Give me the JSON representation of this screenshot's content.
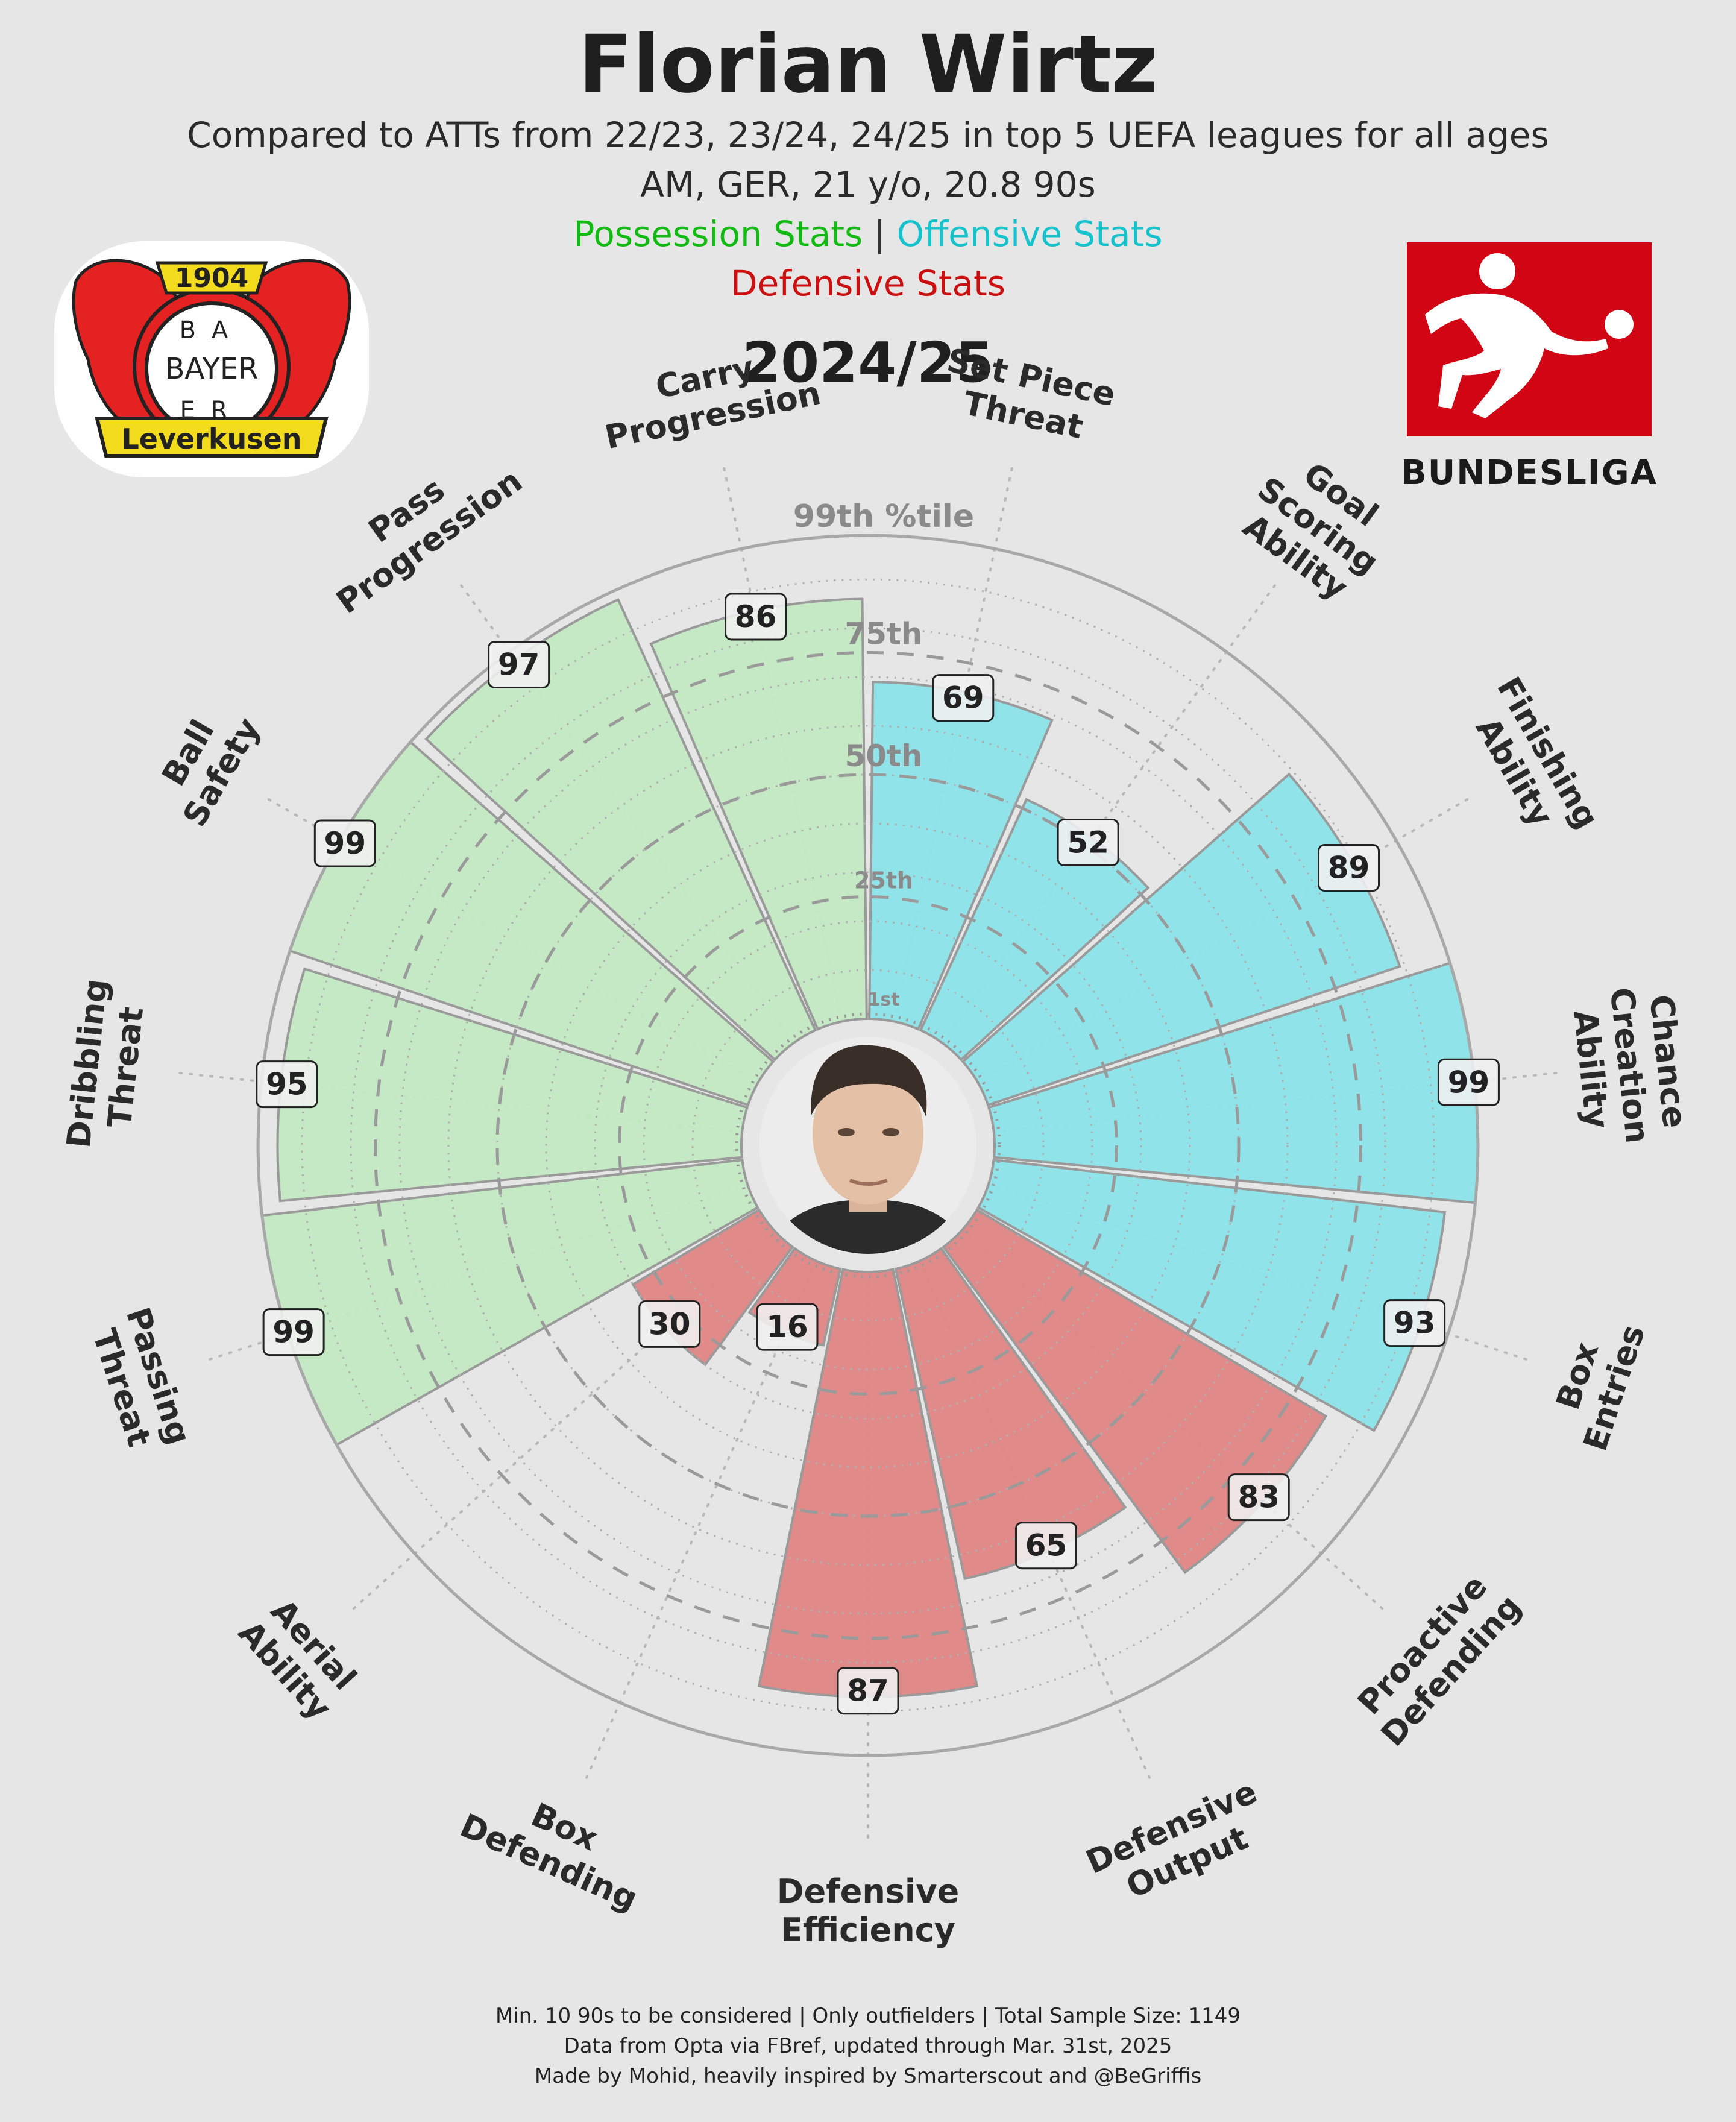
{
  "header": {
    "title": "Florian Wirtz",
    "subtitle_1": "Compared to ATTs from 22/23, 23/24, 24/25 in top 5 UEFA leagues for all ages",
    "subtitle_2": "AM, GER, 21 y/o, 20.8 90s",
    "legend_possession": "Possession Stats",
    "legend_separator": " | ",
    "legend_offensive": "Offensive Stats",
    "legend_defensive": "Defensive Stats",
    "season": "2024/25"
  },
  "colors": {
    "possession_text": "#11bb11",
    "offensive_text": "#14c3cc",
    "defensive_text": "#cc1010",
    "possession_fill": "#c3e8c3",
    "offensive_fill": "#8be3e8",
    "defensive_fill": "#df8585",
    "bundesliga_red": "#d20515",
    "leverkusen_red": "#e32221",
    "leverkusen_yellow": "#f3dc1e"
  },
  "logos": {
    "club_year": "1904",
    "club_name": "BAYER",
    "club_vertical_top": "BA",
    "club_vertical_bottom": "ER",
    "club_banner": "Leverkusen",
    "league_name": "BUNDESLIGA"
  },
  "chart_data": {
    "type": "polar-bar",
    "unit": "percentile",
    "rlim": [
      0,
      100
    ],
    "ring_labels": [
      {
        "value": 1,
        "label": "1st"
      },
      {
        "value": 25,
        "label": "25th"
      },
      {
        "value": 50,
        "label": "50th"
      },
      {
        "value": 75,
        "label": "75th"
      },
      {
        "value": 99,
        "label": "99th %tile"
      }
    ],
    "metrics": [
      {
        "label": "Set Piece\nThreat",
        "value": 69,
        "group": "offensive"
      },
      {
        "label": "Goal\nScoring\nAbility",
        "value": 52,
        "group": "offensive"
      },
      {
        "label": "Finishing\nAbility",
        "value": 89,
        "group": "offensive"
      },
      {
        "label": "Chance\nCreation\nAbility",
        "value": 99,
        "group": "offensive"
      },
      {
        "label": "Box\nEntries",
        "value": 93,
        "group": "offensive"
      },
      {
        "label": "Proactive\nDefending",
        "value": 83,
        "group": "defensive"
      },
      {
        "label": "Defensive\nOutput",
        "value": 65,
        "group": "defensive"
      },
      {
        "label": "Defensive\nEfficiency",
        "value": 87,
        "group": "defensive"
      },
      {
        "label": "Box\nDefending",
        "value": 16,
        "group": "defensive"
      },
      {
        "label": "Aerial\nAbility",
        "value": 30,
        "group": "defensive"
      },
      {
        "label": "Passing\nThreat",
        "value": 99,
        "group": "possession"
      },
      {
        "label": "Dribbling\nThreat",
        "value": 95,
        "group": "possession"
      },
      {
        "label": "Ball\nSafety",
        "value": 99,
        "group": "possession"
      },
      {
        "label": "Pass\nProgression",
        "value": 97,
        "group": "possession"
      },
      {
        "label": "Carry\nProgression",
        "value": 86,
        "group": "possession"
      }
    ]
  },
  "footer": {
    "line_1": "Min. 10 90s to be considered | Only outfielders | Total Sample Size: 1149",
    "line_2": "Data from Opta via FBref, updated through Mar. 31st, 2025",
    "line_3": "Made by Mohid, heavily inspired by Smarterscout and @BeGriffis"
  }
}
